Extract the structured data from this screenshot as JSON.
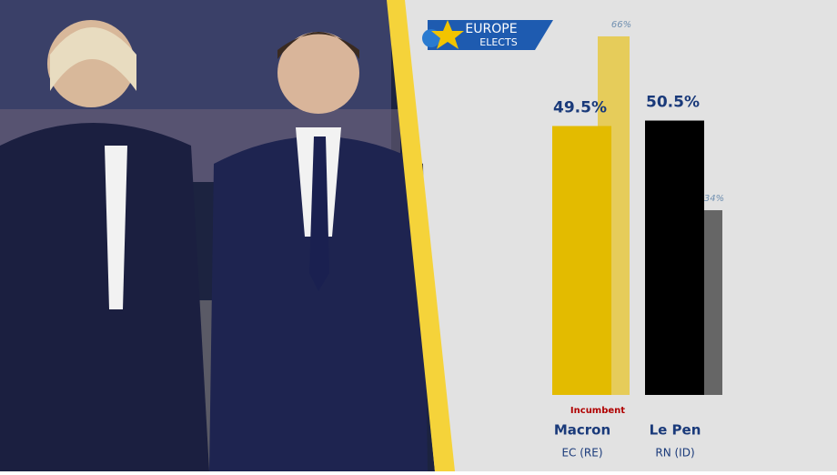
{
  "logo": {
    "line1": "EUROPE",
    "line2": "ELECTS"
  },
  "chart_data": {
    "type": "bar",
    "categories": [
      "Macron",
      "Le Pen"
    ],
    "sublabels": [
      "EC (RE)",
      "RN (ID)"
    ],
    "series": [
      {
        "values": [
          49.5,
          50.5
        ],
        "value_labels": [
          "49.5%",
          "50.5%"
        ],
        "colors": [
          "#e3bb00",
          "#000000"
        ]
      },
      {
        "values": [
          66,
          34
        ],
        "value_labels": [
          "66%",
          "34%"
        ],
        "colors": [
          "#e6cc5a",
          "#666666"
        ]
      }
    ],
    "annotation": "Incumbent"
  }
}
